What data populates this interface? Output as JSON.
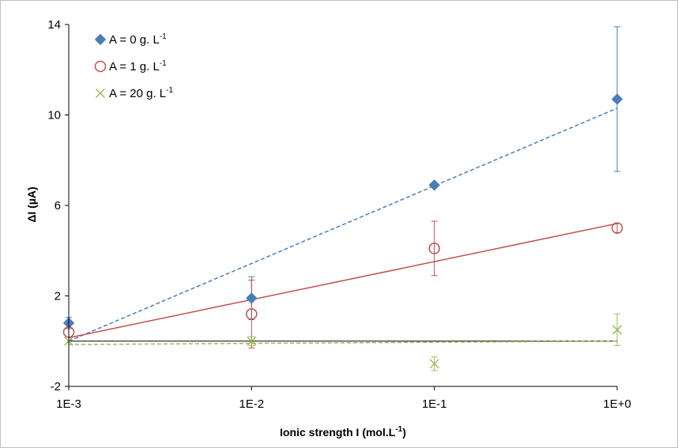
{
  "chart_data": {
    "type": "scatter",
    "x_scale": "log",
    "x_tick_labels": [
      "1E-3",
      "1E-2",
      "1E-1",
      "1E+0"
    ],
    "x_ticks": [
      0.001,
      0.01,
      0.1,
      1
    ],
    "xlim": [
      0.001,
      1
    ],
    "xlabel_main": "Ionic strength I (mol.L",
    "xlabel_sup": "-1",
    "xlabel_end": ")",
    "ylabel": "ΔI (µA)",
    "ylim": [
      -2,
      14
    ],
    "y_ticks": [
      -2,
      2,
      6,
      10,
      14
    ],
    "y_tick_labels": [
      "-2",
      "2",
      "6",
      "10",
      "14"
    ],
    "zero_line": 0,
    "legend_position": "top-left",
    "series": [
      {
        "name_main": "A = 0 g. L",
        "name_sup": "-1",
        "marker": "diamond",
        "color": "#4a7ebb",
        "x": [
          0.001,
          0.01,
          0.1,
          1
        ],
        "y": [
          0.8,
          1.9,
          6.9,
          10.7
        ],
        "err": [
          0.25,
          0.95,
          0.0,
          3.2
        ],
        "trend": {
          "style": "dashed",
          "y_start": 0.0,
          "y_end": 10.3
        }
      },
      {
        "name_main": "A = 1 g. L",
        "name_sup": "-1",
        "marker": "circle",
        "color": "#c0504d",
        "x": [
          0.001,
          0.01,
          0.1,
          1
        ],
        "y": [
          0.4,
          1.2,
          4.1,
          5.0
        ],
        "err": [
          0.0,
          1.5,
          1.2,
          0.2
        ],
        "trend": {
          "style": "solid",
          "y_start": 0.15,
          "y_end": 5.2
        }
      },
      {
        "name_main": "A = 20 g. L",
        "name_sup": "-1",
        "marker": "x",
        "color": "#9bbb59",
        "x": [
          0.001,
          0.01,
          0.1,
          1
        ],
        "y": [
          0.0,
          0.0,
          -1.0,
          0.5
        ],
        "err": [
          0.0,
          0.2,
          0.3,
          0.7
        ],
        "trend": {
          "style": "dashed",
          "y_start": -0.15,
          "y_end": 0.0
        }
      }
    ]
  }
}
